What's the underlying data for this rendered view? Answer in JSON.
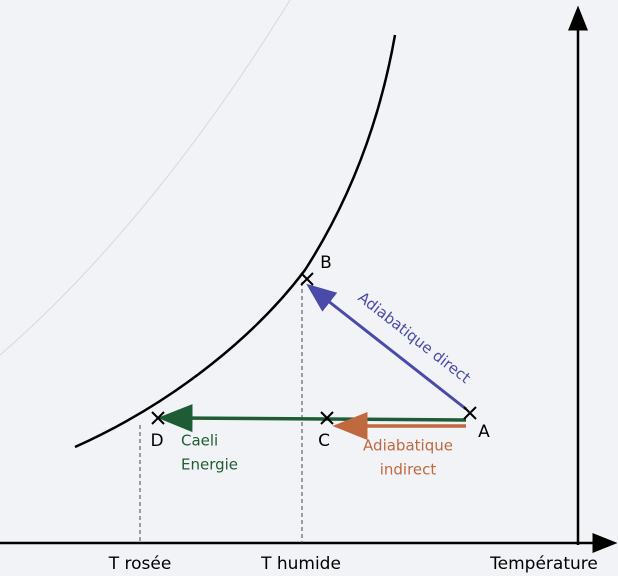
{
  "points": [
    {
      "label": "B"
    },
    {
      "label": "A"
    },
    {
      "label": "C"
    },
    {
      "label": "D"
    }
  ],
  "arrows": [
    {
      "label": "Adiabatique direct"
    },
    {
      "label": [
        "Adiabatique",
        "indirect"
      ]
    },
    {
      "label": [
        "Caeli",
        "Energie"
      ]
    }
  ],
  "axis": {
    "ticks": [
      "T rosée",
      "T humide"
    ],
    "label": "Température"
  }
}
